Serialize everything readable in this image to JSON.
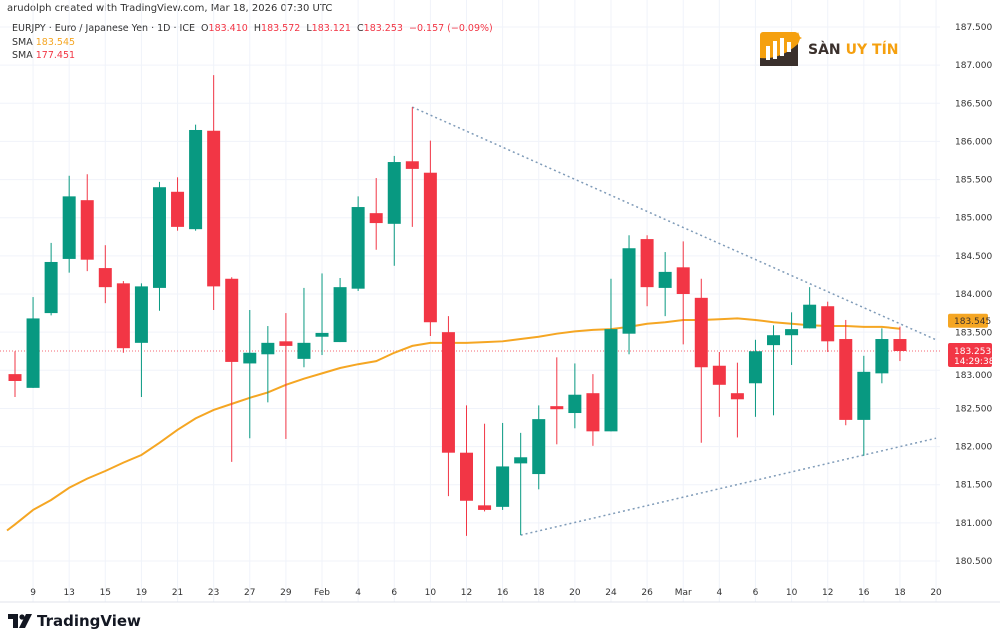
{
  "header": {
    "credit": "arudolph created with TradingView.com, Mar 18, 2026 07:30 UTC",
    "symbol": "EURJPY · Euro / Japanese Yen · 1D · ICE",
    "o_label": "O",
    "o": "183.410",
    "h_label": "H",
    "h": "183.572",
    "l_label": "L",
    "l": "183.121",
    "c_label": "C",
    "c": "183.253",
    "change": "−0.157 (−0.09%)",
    "sma1_label": "SMA",
    "sma1": "183.545",
    "sma2_label": "SMA",
    "sma2": "177.451"
  },
  "brand": {
    "part1": "SÀN",
    "part2": "UY TÍN"
  },
  "footer": {
    "logo_text": "TradingView"
  },
  "colors": {
    "up": "#089981",
    "down": "#f23645",
    "sma": "#f5a623",
    "trendline": "#7f9bb8",
    "grid": "#f0f3fa"
  },
  "chart_data": {
    "type": "candlestick",
    "title": "",
    "ylim": [
      180.35,
      187.6
    ],
    "y_ticks": [
      "180.500",
      "181.000",
      "181.500",
      "182.000",
      "182.500",
      "183.000",
      "183.500",
      "184.000",
      "184.500",
      "185.000",
      "185.500",
      "186.000",
      "186.500",
      "187.000",
      "187.500"
    ],
    "x_ticks": [
      {
        "label": "9",
        "index": 1
      },
      {
        "label": "13",
        "index": 3
      },
      {
        "label": "15",
        "index": 5
      },
      {
        "label": "19",
        "index": 7
      },
      {
        "label": "21",
        "index": 9
      },
      {
        "label": "23",
        "index": 11
      },
      {
        "label": "27",
        "index": 13
      },
      {
        "label": "29",
        "index": 15
      },
      {
        "label": "Feb",
        "index": 17
      },
      {
        "label": "4",
        "index": 19
      },
      {
        "label": "6",
        "index": 21
      },
      {
        "label": "10",
        "index": 23
      },
      {
        "label": "12",
        "index": 25
      },
      {
        "label": "16",
        "index": 27
      },
      {
        "label": "18",
        "index": 29
      },
      {
        "label": "20",
        "index": 31
      },
      {
        "label": "24",
        "index": 33
      },
      {
        "label": "26",
        "index": 35
      },
      {
        "label": "Mar",
        "index": 37
      },
      {
        "label": "4",
        "index": 39
      },
      {
        "label": "6",
        "index": 41
      },
      {
        "label": "10",
        "index": 43
      },
      {
        "label": "12",
        "index": 45
      },
      {
        "label": "16",
        "index": 47
      },
      {
        "label": "18",
        "index": 49
      },
      {
        "label": "20",
        "index": 51
      }
    ],
    "grid": true,
    "candles": [
      [
        182.95,
        183.25,
        182.65,
        182.86
      ],
      [
        182.77,
        183.96,
        182.77,
        183.68
      ],
      [
        183.75,
        184.67,
        183.72,
        184.42
      ],
      [
        184.46,
        185.55,
        184.28,
        185.28
      ],
      [
        185.23,
        185.57,
        184.3,
        184.45
      ],
      [
        184.34,
        184.64,
        183.88,
        184.09
      ],
      [
        184.14,
        184.17,
        183.23,
        183.29
      ],
      [
        183.36,
        184.14,
        182.65,
        184.1
      ],
      [
        184.08,
        185.47,
        183.78,
        185.4
      ],
      [
        185.34,
        185.53,
        184.83,
        184.88
      ],
      [
        184.85,
        186.22,
        184.83,
        186.15
      ],
      [
        186.14,
        186.87,
        183.79,
        184.1
      ],
      [
        184.2,
        184.22,
        181.8,
        183.11
      ],
      [
        183.09,
        183.79,
        182.11,
        183.23
      ],
      [
        183.21,
        183.58,
        182.58,
        183.36
      ],
      [
        183.38,
        183.75,
        182.1,
        183.32
      ],
      [
        183.15,
        184.08,
        183.04,
        183.36
      ],
      [
        183.44,
        184.27,
        183.2,
        183.49
      ],
      [
        183.37,
        184.21,
        183.37,
        184.09
      ],
      [
        184.07,
        185.28,
        184.04,
        185.14
      ],
      [
        185.06,
        185.52,
        184.58,
        184.93
      ],
      [
        184.92,
        185.81,
        184.37,
        185.73
      ],
      [
        185.74,
        186.45,
        184.88,
        185.64
      ],
      [
        185.59,
        186.01,
        183.45,
        183.63
      ],
      [
        183.5,
        183.71,
        181.35,
        181.92
      ],
      [
        181.92,
        182.54,
        180.83,
        181.29
      ],
      [
        181.23,
        182.3,
        181.15,
        181.17
      ],
      [
        181.21,
        182.31,
        181.17,
        181.74
      ],
      [
        181.78,
        182.18,
        180.84,
        181.86
      ],
      [
        181.64,
        182.54,
        181.44,
        182.36
      ],
      [
        182.53,
        183.17,
        182.03,
        182.49
      ],
      [
        182.44,
        183.09,
        182.24,
        182.68
      ],
      [
        182.7,
        182.95,
        182.01,
        182.2
      ],
      [
        182.2,
        184.2,
        182.2,
        183.54
      ],
      [
        183.48,
        184.77,
        183.21,
        184.6
      ],
      [
        184.72,
        184.77,
        183.84,
        184.09
      ],
      [
        184.08,
        184.55,
        183.71,
        184.29
      ],
      [
        184.35,
        184.69,
        183.34,
        184.0
      ],
      [
        183.95,
        184.2,
        182.05,
        183.04
      ],
      [
        183.06,
        183.24,
        182.39,
        182.81
      ],
      [
        182.7,
        183.1,
        182.12,
        182.62
      ],
      [
        182.83,
        183.4,
        182.39,
        183.25
      ],
      [
        183.33,
        183.59,
        182.41,
        183.46
      ],
      [
        183.46,
        183.76,
        183.07,
        183.54
      ],
      [
        183.55,
        184.09,
        183.55,
        183.86
      ],
      [
        183.84,
        183.9,
        183.24,
        183.38
      ],
      [
        183.41,
        183.66,
        182.28,
        182.35
      ],
      [
        182.35,
        183.19,
        181.88,
        182.98
      ],
      [
        182.96,
        183.55,
        182.83,
        183.41
      ],
      [
        183.41,
        183.572,
        183.121,
        183.253
      ]
    ],
    "sma": [
      180.98,
      181.17,
      181.3,
      181.46,
      181.58,
      181.68,
      181.79,
      181.89,
      182.05,
      182.22,
      182.37,
      182.48,
      182.56,
      182.64,
      182.71,
      182.81,
      182.89,
      182.96,
      183.03,
      183.08,
      183.12,
      183.23,
      183.32,
      183.36,
      183.36,
      183.36,
      183.37,
      183.38,
      183.41,
      183.44,
      183.48,
      183.51,
      183.53,
      183.54,
      183.57,
      183.61,
      183.63,
      183.66,
      183.66,
      183.67,
      183.68,
      183.66,
      183.63,
      183.61,
      183.59,
      183.58,
      183.58,
      183.57,
      183.57,
      183.545
    ],
    "trendlines": [
      {
        "from": {
          "index": 22,
          "price": 186.45
        },
        "to": {
          "index": 51,
          "price": 183.4
        }
      },
      {
        "from": {
          "index": 28,
          "price": 180.84
        },
        "to": {
          "index": 51,
          "price": 182.11
        }
      }
    ],
    "price_tags": {
      "sma": "183.545",
      "last": "183.253",
      "countdown": "14:29:38",
      "below": "183.000"
    }
  }
}
